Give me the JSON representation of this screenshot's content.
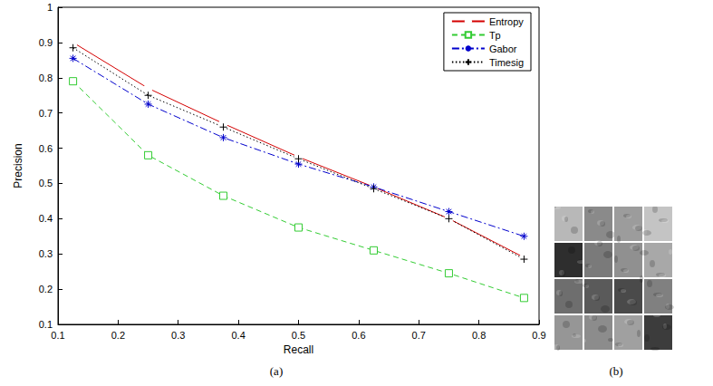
{
  "chart_data": {
    "type": "line",
    "caption": "(a)",
    "x_label": "Recall",
    "y_label": "Precision",
    "x": [
      0.125,
      0.25,
      0.375,
      0.5,
      0.625,
      0.75,
      0.875
    ],
    "series": [
      {
        "name": "Entropy",
        "color": "#d40000",
        "marker": "circle",
        "line_style": "solid",
        "values": [
          0.9,
          0.77,
          0.67,
          0.575,
          0.49,
          0.4,
          0.29
        ]
      },
      {
        "name": "Tp",
        "color": "#33cc33",
        "marker": "square",
        "line_style": "dashed",
        "values": [
          0.79,
          0.58,
          0.465,
          0.375,
          0.31,
          0.245,
          0.175
        ]
      },
      {
        "name": "Gabor",
        "color": "#0000cc",
        "marker": "star",
        "line_style": "dashdot",
        "values": [
          0.855,
          0.725,
          0.63,
          0.555,
          0.49,
          0.42,
          0.35
        ]
      },
      {
        "name": "Timesig",
        "color": "#000000",
        "marker": "plus",
        "line_style": "dotted",
        "values": [
          0.885,
          0.75,
          0.66,
          0.57,
          0.485,
          0.4,
          0.285
        ]
      }
    ],
    "xlim": [
      0.1,
      0.9
    ],
    "xticks": [
      0.1,
      0.2,
      0.3,
      0.4,
      0.5,
      0.6,
      0.7,
      0.8,
      0.9
    ],
    "ylim": [
      0.1,
      1
    ],
    "yticks": [
      0.1,
      0.2,
      0.3,
      0.4,
      0.5,
      0.6,
      0.7,
      0.8,
      0.9,
      1
    ],
    "grid": false,
    "legend": "upper right"
  },
  "figure_b": {
    "caption": "(b)"
  }
}
